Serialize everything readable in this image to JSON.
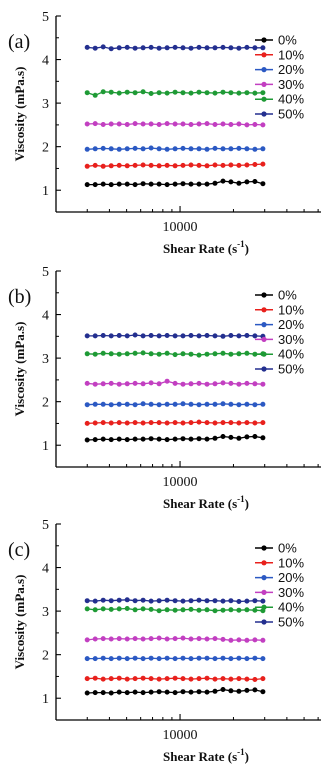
{
  "chart_data": [
    {
      "type": "line",
      "panel_label": "(a)",
      "xlabel": "Shear Rate (s",
      "xlabel_sup": "-1",
      "xlabel_close": ")",
      "ylabel": "Viscosity (mPa.s)",
      "ylim": [
        0.5,
        5
      ],
      "yticks": [
        1,
        2,
        3,
        4,
        5
      ],
      "xlog": true,
      "xlim": [
        2000,
        70000
      ],
      "xticks": [
        10000
      ],
      "xtick_labels": [
        "10000"
      ],
      "x": [
        3000,
        3328,
        3691,
        4093,
        4540,
        5036,
        5585,
        6195,
        6871,
        7621,
        8453,
        9376,
        10399,
        11534,
        12793,
        14189,
        15738,
        17455,
        19360,
        21474,
        23818,
        26417,
        29300
      ],
      "legend_position": "top-right",
      "series": [
        {
          "name": "0%",
          "color": "#000000",
          "values": [
            1.13,
            1.13,
            1.14,
            1.13,
            1.14,
            1.14,
            1.13,
            1.15,
            1.14,
            1.14,
            1.13,
            1.14,
            1.15,
            1.14,
            1.14,
            1.14,
            1.16,
            1.21,
            1.19,
            1.16,
            1.19,
            1.2,
            1.15
          ]
        },
        {
          "name": "10%",
          "color": "#e8201c",
          "values": [
            1.55,
            1.57,
            1.55,
            1.56,
            1.57,
            1.56,
            1.57,
            1.58,
            1.57,
            1.56,
            1.57,
            1.56,
            1.57,
            1.58,
            1.57,
            1.56,
            1.58,
            1.57,
            1.58,
            1.57,
            1.58,
            1.59,
            1.6
          ]
        },
        {
          "name": "20%",
          "color": "#2b59c3",
          "values": [
            1.94,
            1.95,
            1.96,
            1.95,
            1.94,
            1.95,
            1.96,
            1.95,
            1.97,
            1.95,
            1.94,
            1.95,
            1.96,
            1.95,
            1.95,
            1.94,
            1.96,
            1.95,
            1.95,
            1.96,
            1.95,
            1.94,
            1.95
          ]
        },
        {
          "name": "30%",
          "color": "#c23fc1",
          "values": [
            2.52,
            2.53,
            2.51,
            2.52,
            2.52,
            2.51,
            2.53,
            2.52,
            2.52,
            2.51,
            2.53,
            2.52,
            2.52,
            2.51,
            2.52,
            2.53,
            2.51,
            2.52,
            2.51,
            2.52,
            2.5,
            2.51,
            2.5
          ]
        },
        {
          "name": "40%",
          "color": "#1e9a35",
          "values": [
            3.24,
            3.18,
            3.26,
            3.25,
            3.23,
            3.25,
            3.24,
            3.26,
            3.22,
            3.24,
            3.23,
            3.25,
            3.24,
            3.23,
            3.25,
            3.24,
            3.23,
            3.25,
            3.24,
            3.23,
            3.24,
            3.23,
            3.24
          ]
        },
        {
          "name": "50%",
          "color": "#232f8f",
          "values": [
            4.28,
            4.26,
            4.29,
            4.25,
            4.27,
            4.28,
            4.26,
            4.27,
            4.28,
            4.26,
            4.27,
            4.28,
            4.27,
            4.26,
            4.28,
            4.27,
            4.27,
            4.28,
            4.27,
            4.26,
            4.28,
            4.27,
            4.27
          ]
        }
      ]
    },
    {
      "type": "line",
      "panel_label": "(b)",
      "xlabel": "Shear Rate (s",
      "xlabel_sup": "-1",
      "xlabel_close": ")",
      "ylabel": "Viscosity (mPa.s)",
      "ylim": [
        0.5,
        5
      ],
      "yticks": [
        1,
        2,
        3,
        4,
        5
      ],
      "xlog": true,
      "xlim": [
        2000,
        70000
      ],
      "xticks": [
        10000
      ],
      "xtick_labels": [
        "10000"
      ],
      "x": [
        3000,
        3328,
        3691,
        4093,
        4540,
        5036,
        5585,
        6195,
        6871,
        7621,
        8453,
        9376,
        10399,
        11534,
        12793,
        14189,
        15738,
        17455,
        19360,
        21474,
        23818,
        26417,
        29300
      ],
      "legend_position": "top-right",
      "series": [
        {
          "name": "0%",
          "color": "#000000",
          "values": [
            1.12,
            1.13,
            1.14,
            1.13,
            1.14,
            1.13,
            1.14,
            1.14,
            1.15,
            1.14,
            1.13,
            1.14,
            1.15,
            1.14,
            1.15,
            1.14,
            1.16,
            1.2,
            1.18,
            1.16,
            1.19,
            1.2,
            1.17
          ]
        },
        {
          "name": "10%",
          "color": "#e8201c",
          "values": [
            1.5,
            1.51,
            1.52,
            1.51,
            1.52,
            1.51,
            1.52,
            1.51,
            1.52,
            1.52,
            1.51,
            1.52,
            1.51,
            1.52,
            1.53,
            1.52,
            1.51,
            1.52,
            1.52,
            1.51,
            1.52,
            1.51,
            1.52
          ]
        },
        {
          "name": "20%",
          "color": "#2b59c3",
          "values": [
            1.93,
            1.94,
            1.94,
            1.93,
            1.94,
            1.94,
            1.93,
            1.95,
            1.94,
            1.93,
            1.94,
            1.94,
            1.95,
            1.94,
            1.93,
            1.94,
            1.94,
            1.95,
            1.94,
            1.93,
            1.94,
            1.93,
            1.94
          ]
        },
        {
          "name": "30%",
          "color": "#c23fc1",
          "values": [
            2.42,
            2.4,
            2.41,
            2.42,
            2.4,
            2.41,
            2.42,
            2.41,
            2.43,
            2.41,
            2.47,
            2.42,
            2.4,
            2.41,
            2.42,
            2.4,
            2.41,
            2.43,
            2.42,
            2.4,
            2.42,
            2.41,
            2.4
          ]
        },
        {
          "name": "40%",
          "color": "#1e9a35",
          "values": [
            3.1,
            3.09,
            3.11,
            3.1,
            3.09,
            3.1,
            3.11,
            3.12,
            3.1,
            3.09,
            3.11,
            3.08,
            3.1,
            3.09,
            3.07,
            3.09,
            3.1,
            3.11,
            3.09,
            3.1,
            3.11,
            3.09,
            3.1
          ]
        },
        {
          "name": "50%",
          "color": "#232f8f",
          "values": [
            3.51,
            3.51,
            3.52,
            3.51,
            3.52,
            3.51,
            3.53,
            3.51,
            3.52,
            3.51,
            3.52,
            3.51,
            3.51,
            3.52,
            3.51,
            3.52,
            3.51,
            3.5,
            3.52,
            3.51,
            3.52,
            3.51,
            3.5
          ]
        }
      ]
    },
    {
      "type": "line",
      "panel_label": "(c)",
      "xlabel": "Shear Rate (s",
      "xlabel_sup": "-1",
      "xlabel_close": ")",
      "ylabel": "Viscosity (mPa.s)",
      "ylim": [
        0.5,
        5
      ],
      "yticks": [
        1,
        2,
        3,
        4,
        5
      ],
      "xlog": true,
      "xlim": [
        2000,
        70000
      ],
      "xticks": [
        10000
      ],
      "xtick_labels": [
        "10000"
      ],
      "x": [
        3000,
        3328,
        3691,
        4093,
        4540,
        5036,
        5585,
        6195,
        6871,
        7621,
        8453,
        9376,
        10399,
        11534,
        12793,
        14189,
        15738,
        17455,
        19360,
        21474,
        23818,
        26417,
        29300
      ],
      "legend_position": "top-right",
      "series": [
        {
          "name": "0%",
          "color": "#000000",
          "values": [
            1.12,
            1.13,
            1.13,
            1.12,
            1.14,
            1.13,
            1.14,
            1.13,
            1.14,
            1.15,
            1.14,
            1.13,
            1.15,
            1.14,
            1.15,
            1.14,
            1.16,
            1.2,
            1.17,
            1.16,
            1.18,
            1.19,
            1.15
          ]
        },
        {
          "name": "10%",
          "color": "#e8201c",
          "values": [
            1.45,
            1.46,
            1.44,
            1.45,
            1.46,
            1.44,
            1.45,
            1.46,
            1.45,
            1.44,
            1.45,
            1.46,
            1.45,
            1.44,
            1.45,
            1.46,
            1.44,
            1.45,
            1.44,
            1.45,
            1.44,
            1.43,
            1.45
          ]
        },
        {
          "name": "20%",
          "color": "#2b59c3",
          "values": [
            1.91,
            1.91,
            1.92,
            1.91,
            1.92,
            1.91,
            1.92,
            1.91,
            1.92,
            1.91,
            1.92,
            1.91,
            1.92,
            1.91,
            1.92,
            1.92,
            1.91,
            1.92,
            1.91,
            1.92,
            1.91,
            1.92,
            1.91
          ]
        },
        {
          "name": "30%",
          "color": "#c23fc1",
          "values": [
            2.34,
            2.36,
            2.37,
            2.36,
            2.37,
            2.36,
            2.37,
            2.36,
            2.37,
            2.38,
            2.36,
            2.37,
            2.38,
            2.36,
            2.37,
            2.36,
            2.37,
            2.35,
            2.33,
            2.34,
            2.33,
            2.34,
            2.33
          ]
        },
        {
          "name": "40%",
          "color": "#1e9a35",
          "values": [
            3.05,
            3.03,
            3.05,
            3.04,
            3.05,
            3.06,
            3.03,
            3.05,
            3.04,
            3.01,
            3.03,
            3.02,
            3.03,
            3.04,
            3.02,
            3.03,
            3.01,
            3.02,
            3.03,
            3.02,
            3.03,
            3.02,
            3.01
          ]
        },
        {
          "name": "50%",
          "color": "#232f8f",
          "values": [
            3.24,
            3.23,
            3.25,
            3.24,
            3.25,
            3.26,
            3.24,
            3.25,
            3.23,
            3.24,
            3.25,
            3.24,
            3.23,
            3.24,
            3.25,
            3.24,
            3.24,
            3.23,
            3.24,
            3.22,
            3.23,
            3.24,
            3.23
          ]
        }
      ]
    }
  ]
}
